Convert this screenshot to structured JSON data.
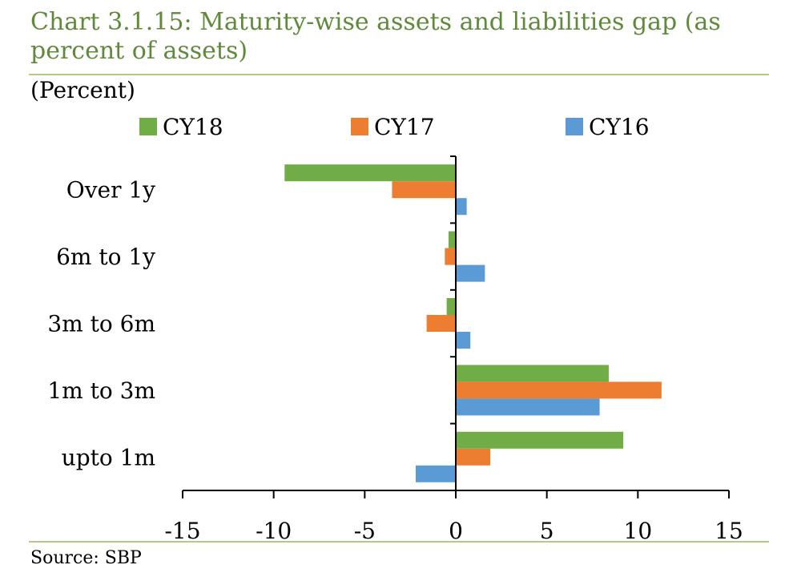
{
  "title": "Chart 3.1.15: Maturity-wise assets and liabilities gap (as percent of assets)",
  "unit_label": "(Percent)",
  "source": "Source:  SBP",
  "colors": {
    "accent": "#5f8a3a",
    "rule": "#b5c989"
  },
  "chart_data": {
    "type": "bar",
    "orientation": "horizontal",
    "categories": [
      "Over 1y",
      "6m to 1y",
      "3m to 6m",
      "1m to 3m",
      "upto 1m"
    ],
    "series": [
      {
        "name": "CY18",
        "color": "#70ad47",
        "values": [
          -9.4,
          -0.4,
          -0.5,
          8.4,
          9.2
        ]
      },
      {
        "name": "CY17",
        "color": "#ed7d31",
        "values": [
          -3.5,
          -0.6,
          -1.6,
          11.3,
          1.9
        ]
      },
      {
        "name": "CY16",
        "color": "#5b9bd5",
        "values": [
          0.6,
          1.6,
          0.8,
          7.9,
          -2.2
        ]
      }
    ],
    "xlim": [
      -15,
      15
    ],
    "xticks": [
      -15,
      -10,
      -5,
      0,
      5,
      10,
      15
    ],
    "xtick_labels": [
      "-15",
      "-10",
      "-5",
      "0",
      "5",
      "10",
      "15"
    ],
    "legend_position": "top",
    "grid": false
  }
}
